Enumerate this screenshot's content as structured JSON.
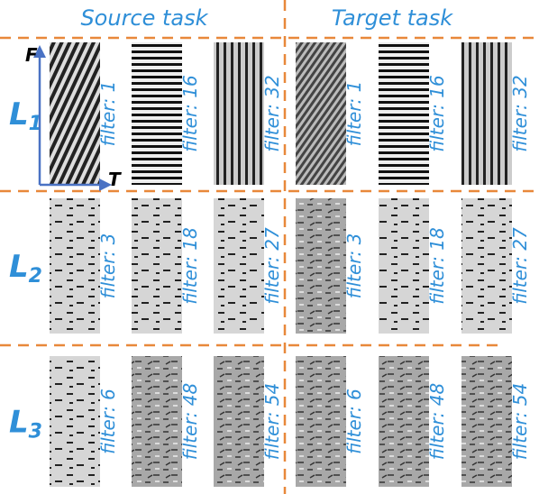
{
  "header": {
    "source": "Source task",
    "target": "Target task"
  },
  "axes": {
    "f": "F",
    "t": "T"
  },
  "rows": [
    {
      "label": "L",
      "sub": "1",
      "filters": [
        "filter: 1",
        "filter: 16",
        "filter: 32",
        "filter: 1",
        "filter: 16",
        "filter: 32"
      ]
    },
    {
      "label": "L",
      "sub": "2",
      "filters": [
        "filter: 3",
        "filter: 18",
        "filter: 27",
        "filter: 3",
        "filter: 18",
        "filter: 27"
      ]
    },
    {
      "label": "L",
      "sub": "3",
      "filters": [
        "filter: 6",
        "filter: 48",
        "filter: 54",
        "filter: 6",
        "filter: 48",
        "filter: 54"
      ]
    }
  ]
}
